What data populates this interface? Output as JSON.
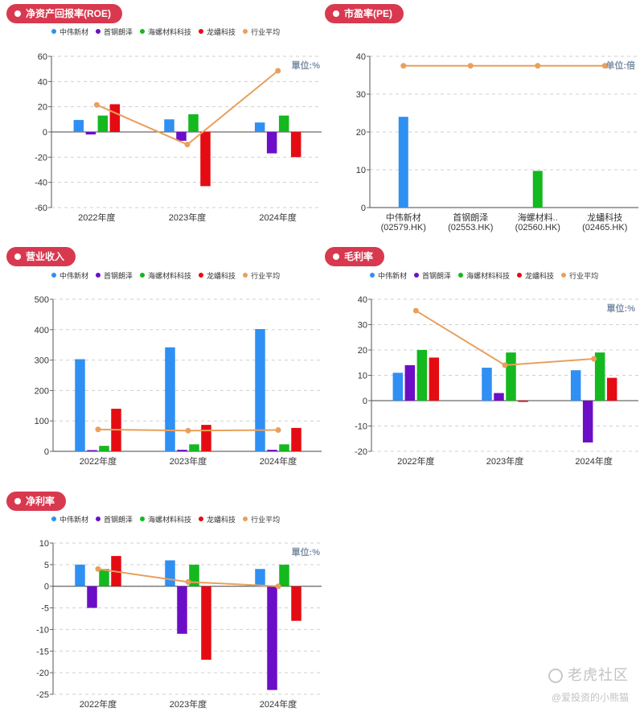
{
  "legend": [
    {
      "name": "中伟新材",
      "color": "#2f8ff2"
    },
    {
      "name": "首钢朗泽",
      "color": "#6c0ec7"
    },
    {
      "name": "海螺材料科技",
      "color": "#14b81f"
    },
    {
      "name": "龙蟠科技",
      "color": "#e50b12"
    },
    {
      "name": "行业平均",
      "color": "#e8a05c"
    }
  ],
  "watermark": {
    "logo": "老虎社区",
    "user": "@爱投资的小熊猫"
  },
  "chart_data": [
    {
      "id": "roe",
      "type": "bar",
      "title": "净资产回报率(ROE)",
      "unit": "單位:%",
      "categories": [
        "2022年度",
        "2023年度",
        "2024年度"
      ],
      "ylim": [
        -60,
        60
      ],
      "yticks": [
        60,
        40,
        20,
        0,
        -20,
        -40,
        -60
      ],
      "series": [
        {
          "name": "中伟新材",
          "color": "#2f8ff2",
          "values": [
            9.5,
            10,
            7.5
          ]
        },
        {
          "name": "首钢朗泽",
          "color": "#6c0ec7",
          "values": [
            -2,
            -7,
            -17
          ]
        },
        {
          "name": "海螺材料科技",
          "color": "#14b81f",
          "values": [
            13,
            14,
            13
          ]
        },
        {
          "name": "龙蟠科技",
          "color": "#e50b12",
          "values": [
            22,
            -43,
            -20
          ]
        }
      ],
      "line": {
        "name": "行业平均",
        "color": "#e8a05c",
        "values": [
          21.5,
          -10,
          48.5
        ]
      }
    },
    {
      "id": "pe",
      "type": "bar",
      "title": "市盈率(PE)",
      "unit": "单位:倍",
      "categories": [
        "中伟新材\n(02579.HK)",
        "首钢朗泽\n(02553.HK)",
        "海螺材料..\n(02560.HK)",
        "龙蟠科技\n(02465.HK)"
      ],
      "ylim": [
        0,
        40
      ],
      "yticks": [
        40,
        30,
        20,
        10,
        0
      ],
      "single": true,
      "values": [
        24,
        0,
        9.7,
        0
      ],
      "colors": [
        "#2f8ff2",
        "#6c0ec7",
        "#14b81f",
        "#e50b12"
      ],
      "line": {
        "name": "行业平均",
        "color": "#e8a05c",
        "values": [
          37.5,
          37.5,
          37.5,
          37.5
        ]
      }
    },
    {
      "id": "rev",
      "type": "bar",
      "title": "营业收入",
      "unit": "",
      "categories": [
        "2022年度",
        "2023年度",
        "2024年度"
      ],
      "ylim": [
        0,
        500
      ],
      "yticks": [
        500,
        400,
        300,
        200,
        100,
        0
      ],
      "series": [
        {
          "name": "中伟新材",
          "color": "#2f8ff2",
          "values": [
            303,
            342,
            402
          ]
        },
        {
          "name": "首钢朗泽",
          "color": "#6c0ec7",
          "values": [
            4,
            5,
            5
          ]
        },
        {
          "name": "海螺材料科技",
          "color": "#14b81f",
          "values": [
            18,
            23,
            23
          ]
        },
        {
          "name": "龙蟠科技",
          "color": "#e50b12",
          "values": [
            140,
            87,
            77
          ]
        }
      ],
      "line": {
        "name": "行业平均",
        "color": "#e8a05c",
        "values": [
          72,
          68,
          70
        ]
      }
    },
    {
      "id": "gm",
      "type": "bar",
      "title": "毛利率",
      "unit": "單位:%",
      "categories": [
        "2022年度",
        "2023年度",
        "2024年度"
      ],
      "ylim": [
        -20,
        40
      ],
      "yticks": [
        40,
        30,
        20,
        10,
        0,
        -10,
        -20
      ],
      "series": [
        {
          "name": "中伟新材",
          "color": "#2f8ff2",
          "values": [
            11,
            13,
            12
          ]
        },
        {
          "name": "首钢朗泽",
          "color": "#6c0ec7",
          "values": [
            14,
            3,
            -16.5
          ]
        },
        {
          "name": "海螺材料科技",
          "color": "#14b81f",
          "values": [
            20,
            19,
            19
          ]
        },
        {
          "name": "龙蟠科技",
          "color": "#e50b12",
          "values": [
            17,
            -0.5,
            9
          ]
        }
      ],
      "line": {
        "name": "行业平均",
        "color": "#e8a05c",
        "values": [
          35.5,
          14,
          16.5
        ]
      }
    },
    {
      "id": "npm",
      "type": "bar",
      "title": "净利率",
      "unit": "單位:%",
      "categories": [
        "2022年度",
        "2023年度",
        "2024年度"
      ],
      "ylim": [
        -25,
        10
      ],
      "yticks": [
        10,
        5,
        0,
        -5,
        -10,
        -15,
        -20,
        -25
      ],
      "series": [
        {
          "name": "中伟新材",
          "color": "#2f8ff2",
          "values": [
            5,
            6,
            4
          ]
        },
        {
          "name": "首钢朗泽",
          "color": "#6c0ec7",
          "values": [
            -5,
            -11,
            -24
          ]
        },
        {
          "name": "海螺材料科技",
          "color": "#14b81f",
          "values": [
            4,
            5,
            5
          ]
        },
        {
          "name": "龙蟠科技",
          "color": "#e50b12",
          "values": [
            7,
            -17,
            -8
          ]
        }
      ],
      "line": {
        "name": "行业平均",
        "color": "#e8a05c",
        "values": [
          4,
          1,
          0
        ]
      }
    }
  ]
}
